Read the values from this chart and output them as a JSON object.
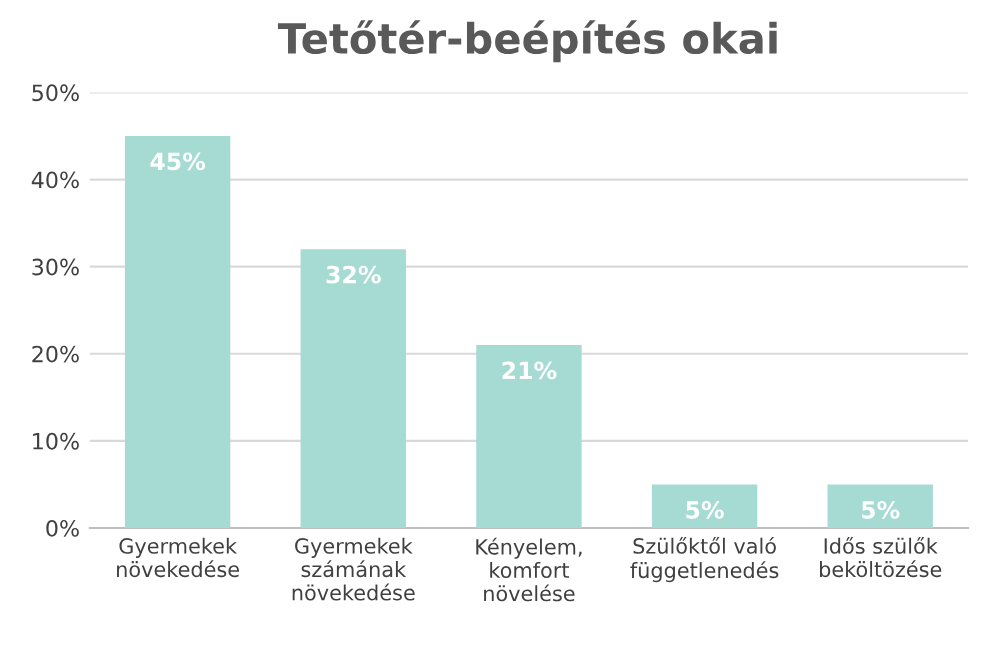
{
  "chart_data": {
    "type": "bar",
    "title": "Tetőtér-beépítés okai",
    "categories": [
      "Gyermekek\nnövekedése",
      "Gyermekek\nszámának\nnövekedése",
      "Kényelem,\nkomfort\nnövelése",
      "Szülőktől való\nfüggetlenedés",
      "Idős szülők\nbeköltözése"
    ],
    "values": [
      45,
      32,
      21,
      5,
      5
    ],
    "value_labels": [
      "45%",
      "32%",
      "21%",
      "5%",
      "5%"
    ],
    "color": "#a6dbd4",
    "ylim": [
      0,
      50
    ],
    "yticks": [
      {
        "value": 0,
        "label": "0%"
      },
      {
        "value": 10,
        "label": "10%"
      },
      {
        "value": 20,
        "label": "20%"
      },
      {
        "value": 30,
        "label": "30%"
      },
      {
        "value": 40,
        "label": "40%"
      },
      {
        "value": 50,
        "label": "50%"
      }
    ],
    "grid": "y"
  }
}
